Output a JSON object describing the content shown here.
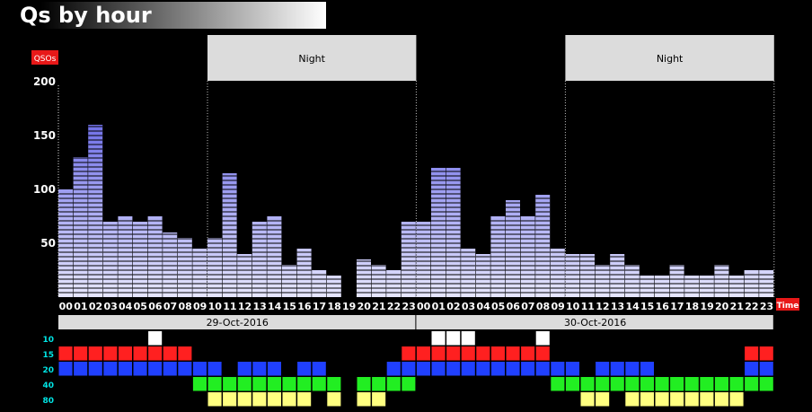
{
  "title": "Qs by hour",
  "colors": {
    "background": "#000000",
    "bar_top": "#4c4ce0",
    "bar_bottom": "#e6e6ff",
    "band_10": "#ffffff",
    "band_15": "#ff2020",
    "band_20": "#2040ff",
    "band_40": "#22ee22",
    "band_80": "#ffff80",
    "label_red": "#e81818",
    "night_panel": "#dcdcdc"
  },
  "chart_data": {
    "type": "bar",
    "ylabel": "QSOs",
    "xlabel": "Time",
    "yticks": [
      50,
      100,
      150,
      200
    ],
    "ylim": [
      0,
      210
    ],
    "hour_labels": [
      "00",
      "01",
      "02",
      "03",
      "04",
      "05",
      "06",
      "07",
      "08",
      "09",
      "10",
      "11",
      "12",
      "13",
      "14",
      "15",
      "16",
      "17",
      "18",
      "19",
      "20",
      "21",
      "22",
      "23"
    ],
    "days": [
      {
        "label": "29-Oct-2016",
        "values": [
          100,
          130,
          160,
          70,
          75,
          70,
          75,
          60,
          55,
          45,
          55,
          115,
          40,
          70,
          75,
          30,
          45,
          25,
          20,
          0,
          35,
          30,
          25,
          70
        ]
      },
      {
        "label": "30-Oct-2016",
        "values": [
          70,
          120,
          120,
          45,
          40,
          75,
          90,
          75,
          95,
          45,
          40,
          40,
          30,
          40,
          30,
          20,
          20,
          30,
          20,
          20,
          30,
          20,
          25,
          25
        ]
      }
    ],
    "night_label": "Night",
    "night_ranges": [
      [
        10,
        23
      ],
      [
        34,
        47
      ]
    ],
    "bands": [
      {
        "name": "10",
        "hours": [
          6,
          25,
          26,
          27,
          32
        ]
      },
      {
        "name": "15",
        "hours": [
          0,
          1,
          2,
          3,
          4,
          5,
          6,
          7,
          8,
          23,
          24,
          25,
          26,
          27,
          28,
          29,
          30,
          31,
          32,
          46,
          47
        ]
      },
      {
        "name": "20",
        "hours": [
          0,
          1,
          2,
          3,
          4,
          5,
          6,
          7,
          8,
          9,
          10,
          12,
          13,
          14,
          16,
          17,
          22,
          23,
          24,
          25,
          26,
          27,
          28,
          29,
          30,
          31,
          32,
          33,
          34,
          36,
          37,
          38,
          39,
          46,
          47
        ]
      },
      {
        "name": "40",
        "hours": [
          9,
          10,
          11,
          12,
          13,
          14,
          15,
          16,
          17,
          18,
          20,
          21,
          22,
          23,
          33,
          34,
          35,
          36,
          37,
          38,
          39,
          40,
          41,
          42,
          43,
          44,
          45,
          46,
          47
        ]
      },
      {
        "name": "80",
        "hours": [
          10,
          11,
          12,
          13,
          14,
          15,
          16,
          18,
          20,
          21,
          35,
          36,
          38,
          39,
          40,
          41,
          42,
          43,
          44,
          45
        ]
      }
    ]
  }
}
